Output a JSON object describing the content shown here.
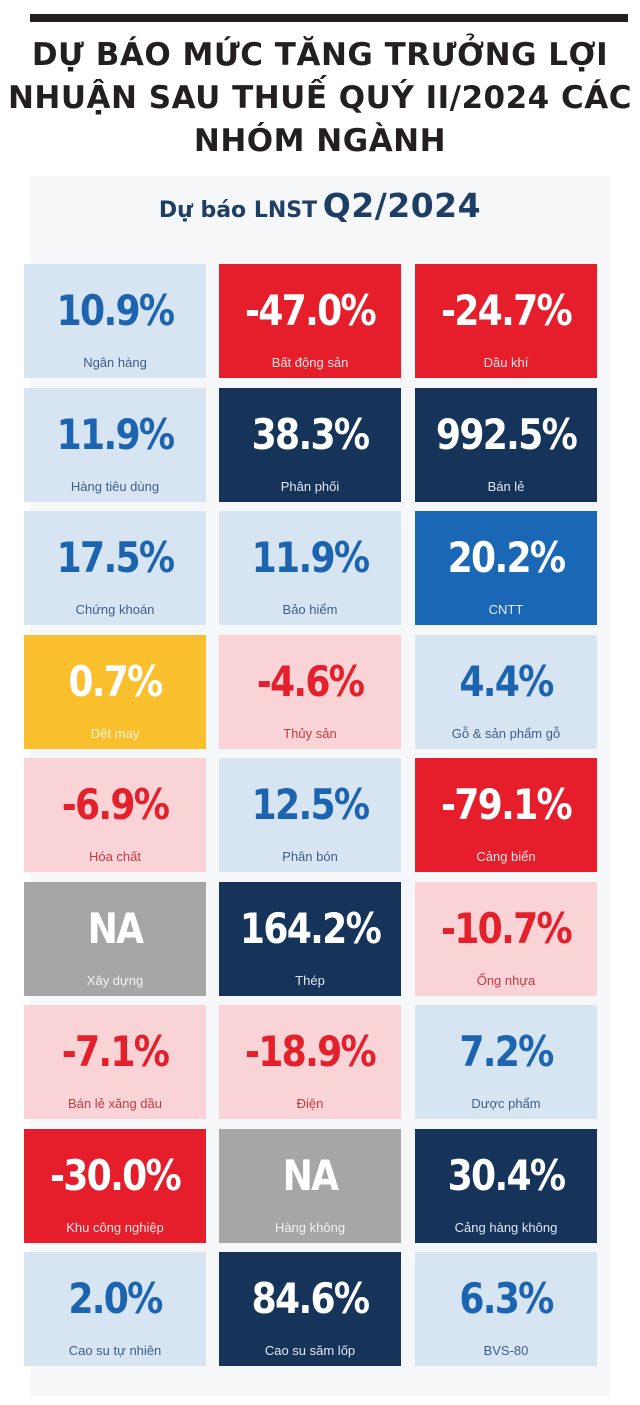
{
  "headline": "DỰ BÁO MỨC TĂNG TRƯỞNG LỢI NHUẬN SAU THUẾ QUÝ II/2024 CÁC NHÓM NGÀNH",
  "chart_title_prefix": "Dự báo LNST",
  "chart_title_period": "Q2/2024",
  "colors": {
    "light_blue": "#d7e5f3",
    "light_pink": "#f9d3d6",
    "red": "#e61e2b",
    "navy": "#16345a",
    "blue": "#1967b5",
    "gold": "#f9bf2c",
    "gray": "#a6a6a6",
    "blue_text": "#1d64b0",
    "red_text": "#e3202c"
  },
  "chart_data": {
    "type": "table",
    "title": "Dự báo LNST Q2/2024",
    "columns": 3,
    "cells": [
      {
        "value_text": "10.9%",
        "value": 10.9,
        "label": "Ngân hàng",
        "color": "light_blue"
      },
      {
        "value_text": "-47.0%",
        "value": -47.0,
        "label": "Bất động sản",
        "color": "red"
      },
      {
        "value_text": "-24.7%",
        "value": -24.7,
        "label": "Dầu khí",
        "color": "red"
      },
      {
        "value_text": "11.9%",
        "value": 11.9,
        "label": "Hàng tiêu dùng",
        "color": "light_blue"
      },
      {
        "value_text": "38.3%",
        "value": 38.3,
        "label": "Phân phối",
        "color": "navy"
      },
      {
        "value_text": "992.5%",
        "value": 992.5,
        "label": "Bán lẻ",
        "color": "navy"
      },
      {
        "value_text": "17.5%",
        "value": 17.5,
        "label": "Chứng khoán",
        "color": "light_blue"
      },
      {
        "value_text": "11.9%",
        "value": 11.9,
        "label": "Bảo hiểm",
        "color": "light_blue"
      },
      {
        "value_text": "20.2%",
        "value": 20.2,
        "label": "CNTT",
        "color": "blue"
      },
      {
        "value_text": "0.7%",
        "value": 0.7,
        "label": "Dệt may",
        "color": "gold"
      },
      {
        "value_text": "-4.6%",
        "value": -4.6,
        "label": "Thủy sản",
        "color": "light_pink"
      },
      {
        "value_text": "4.4%",
        "value": 4.4,
        "label": "Gỗ & sản phẩm gỗ",
        "color": "light_blue"
      },
      {
        "value_text": "-6.9%",
        "value": -6.9,
        "label": "Hóa chất",
        "color": "light_pink"
      },
      {
        "value_text": "12.5%",
        "value": 12.5,
        "label": "Phân bón",
        "color": "light_blue"
      },
      {
        "value_text": "-79.1%",
        "value": -79.1,
        "label": "Cảng biển",
        "color": "red"
      },
      {
        "value_text": "NA",
        "value": null,
        "label": "Xây dựng",
        "color": "gray"
      },
      {
        "value_text": "164.2%",
        "value": 164.2,
        "label": "Thép",
        "color": "navy"
      },
      {
        "value_text": "-10.7%",
        "value": -10.7,
        "label": "Ống nhựa",
        "color": "light_pink"
      },
      {
        "value_text": "-7.1%",
        "value": -7.1,
        "label": "Bán lẻ xăng dầu",
        "color": "light_pink"
      },
      {
        "value_text": "-18.9%",
        "value": -18.9,
        "label": "Điện",
        "color": "light_pink"
      },
      {
        "value_text": "7.2%",
        "value": 7.2,
        "label": "Dược phẩm",
        "color": "light_blue"
      },
      {
        "value_text": "-30.0%",
        "value": -30.0,
        "label": "Khu công nghiệp",
        "color": "red"
      },
      {
        "value_text": "NA",
        "value": null,
        "label": "Hàng không",
        "color": "gray"
      },
      {
        "value_text": "30.4%",
        "value": 30.4,
        "label": "Cảng hàng không",
        "color": "navy"
      },
      {
        "value_text": "2.0%",
        "value": 2.0,
        "label": "Cao su tự nhiên",
        "color": "light_blue"
      },
      {
        "value_text": "84.6%",
        "value": 84.6,
        "label": "Cao su săm lốp",
        "color": "navy"
      },
      {
        "value_text": "6.3%",
        "value": 6.3,
        "label": "BVS-80",
        "color": "light_blue"
      }
    ]
  }
}
